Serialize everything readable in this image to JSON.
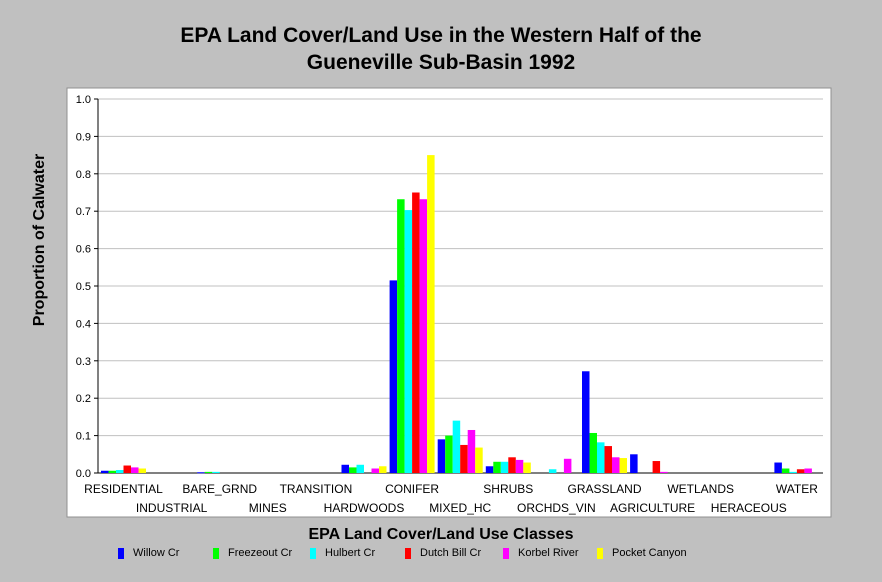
{
  "chart_data": {
    "type": "bar",
    "title_line1": "EPA Land Cover/Land Use in the Western Half of the",
    "title_line2": "Gueneville Sub-Basin 1992",
    "xlabel": "EPA Land Cover/Land Use Classes",
    "ylabel": "Proportion of Calwater",
    "ylim": [
      0,
      1.0
    ],
    "yticks": [
      "0.0",
      "0.1",
      "0.2",
      "0.3",
      "0.4",
      "0.5",
      "0.6",
      "0.7",
      "0.8",
      "0.9",
      "1.0"
    ],
    "grid": true,
    "legend_position": "bottom",
    "categories": [
      "RESIDENTIAL",
      "INDUSTRIAL",
      "BARE_GRND",
      "MINES",
      "TRANSITION",
      "HARDWOODS",
      "CONIFER",
      "MIXED_HC",
      "SHRUBS",
      "ORCHDS_VIN",
      "GRASSLAND",
      "AGRICULTURE",
      "WETLANDS",
      "HERACEOUS",
      "WATER"
    ],
    "series": [
      {
        "name": "Willow Cr",
        "color": "#0000ff",
        "values": [
          0.006,
          0,
          0.002,
          0,
          0,
          0.022,
          0.515,
          0.09,
          0.018,
          0,
          0.272,
          0.05,
          0,
          0,
          0.028
        ]
      },
      {
        "name": "Freezeout Cr",
        "color": "#00ff00",
        "values": [
          0.006,
          0,
          0.003,
          0,
          0,
          0.015,
          0.732,
          0.1,
          0.03,
          0,
          0.107,
          0,
          0,
          0,
          0.012
        ]
      },
      {
        "name": "Hulbert Cr",
        "color": "#00ffff",
        "values": [
          0.008,
          0,
          0.003,
          0,
          0,
          0.022,
          0.703,
          0.14,
          0.03,
          0.01,
          0.082,
          0,
          0,
          0,
          0.003
        ]
      },
      {
        "name": "Dutch Bill Cr",
        "color": "#ff0000",
        "values": [
          0.02,
          0,
          0,
          0,
          0,
          0,
          0.75,
          0.075,
          0.042,
          0,
          0.072,
          0.032,
          0,
          0,
          0.01
        ]
      },
      {
        "name": "Korbel River",
        "color": "#ff00ff",
        "values": [
          0.015,
          0,
          0,
          0,
          0,
          0.012,
          0.732,
          0.115,
          0.035,
          0.038,
          0.042,
          0.003,
          0,
          0,
          0.012
        ]
      },
      {
        "name": "Pocket Canyon",
        "color": "#ffff00",
        "values": [
          0.012,
          0,
          0,
          0,
          0,
          0.018,
          0.85,
          0.068,
          0.028,
          0,
          0.04,
          0,
          0,
          0,
          0
        ]
      }
    ]
  }
}
